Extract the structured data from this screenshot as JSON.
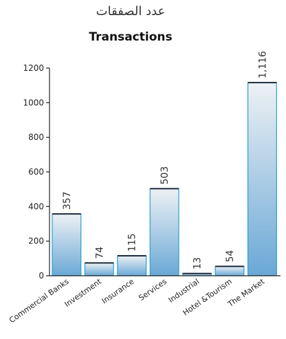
{
  "chart_data": {
    "type": "bar",
    "title": "Transactions",
    "subtitle": "عدد الصفقات",
    "categories": [
      "Commercial Banks",
      "Investment",
      "Insurance",
      "Services",
      "Industrial",
      "Hotel &Tourism",
      "The Market"
    ],
    "values": [
      357,
      74,
      115,
      503,
      13,
      54,
      1116
    ],
    "value_labels": [
      "357",
      "74",
      "115",
      "503",
      "13",
      "54",
      "1,116"
    ],
    "yticks": [
      "0",
      "200",
      "400",
      "600",
      "800",
      "1000",
      "1200"
    ],
    "ylim": [
      0,
      1200
    ],
    "xlabel": "",
    "ylabel": "",
    "grid": false,
    "colors": {
      "bar_top": "#eef1f4",
      "bar_bottom": "#6aa8d6",
      "bar_border": "#2a9fd0",
      "bar_cap": "#1a2a3a",
      "axis": "#222222"
    }
  }
}
